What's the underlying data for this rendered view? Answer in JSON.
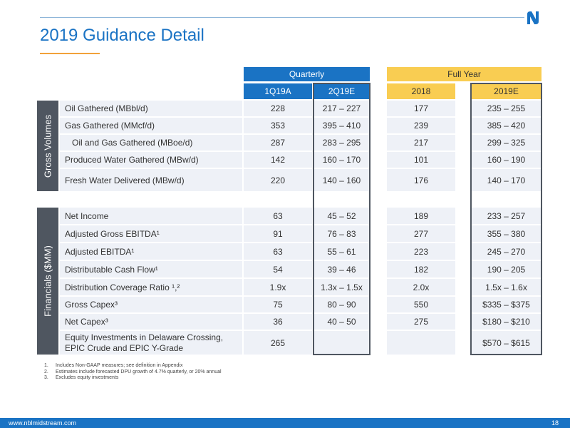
{
  "title": "2019 Guidance Detail",
  "groups": {
    "quarterly": "Quarterly",
    "full_year": "Full Year"
  },
  "columns": [
    "1Q19A",
    "2Q19E",
    "2018",
    "2019E"
  ],
  "sections": [
    {
      "label": "Gross Volumes",
      "rows": [
        {
          "label": "Oil Gathered (MBbl/d)",
          "values": [
            "228",
            "217 – 227",
            "177",
            "235 – 255"
          ]
        },
        {
          "label": "Gas Gathered (MMcf/d)",
          "values": [
            "353",
            "395 – 410",
            "239",
            "385 – 420"
          ]
        },
        {
          "label": "Oil and Gas Gathered (MBoe/d)",
          "values": [
            "287",
            "283 – 295",
            "217",
            "299 – 325"
          ]
        },
        {
          "label": "Produced Water Gathered (MBw/d)",
          "values": [
            "142",
            "160 – 170",
            "101",
            "160 – 190"
          ]
        },
        {
          "label": "Fresh Water Delivered (MBw/d)",
          "values": [
            "220",
            "140 – 160",
            "176",
            "140 – 170"
          ]
        }
      ]
    },
    {
      "label": "Financials ($MM)",
      "rows": [
        {
          "label": "Net Income",
          "values": [
            "63",
            "45 – 52",
            "189",
            "233 – 257"
          ]
        },
        {
          "label": "Adjusted Gross EBITDA¹",
          "values": [
            "91",
            "76 – 83",
            "277",
            "355 – 380"
          ]
        },
        {
          "label": "Adjusted EBITDA¹",
          "values": [
            "63",
            "55 – 61",
            "223",
            "245 – 270"
          ]
        },
        {
          "label": "Distributable Cash Flow¹",
          "values": [
            "54",
            "39 – 46",
            "182",
            "190 – 205"
          ]
        },
        {
          "label": "Distribution Coverage Ratio ¹,²",
          "values": [
            "1.9x",
            "1.3x – 1.5x",
            "2.0x",
            "1.5x – 1.6x"
          ]
        },
        {
          "label": "Gross Capex³",
          "values": [
            "75",
            "80 – 90",
            "550",
            "$335 – $375"
          ]
        },
        {
          "label": "Net Capex³",
          "values": [
            "36",
            "40 – 50",
            "275",
            "$180 – $210"
          ]
        },
        {
          "label": "Equity Investments in Delaware Crossing, EPIC Crude and EPIC Y-Grade",
          "values": [
            "265",
            "",
            "",
            "$570 – $615"
          ]
        }
      ]
    }
  ],
  "footnotes": [
    {
      "num": "1.",
      "text": "Includes Non-GAAP measures; see definition in Appendix"
    },
    {
      "num": "2.",
      "text": "Estimates include forecasted DPU growth of 4.7% quarterly, or 20% annual"
    },
    {
      "num": "3.",
      "text": "Excludes equity investments"
    }
  ],
  "footer": {
    "url": "www.nblmidstream.com",
    "page": "18"
  },
  "colors": {
    "blue": "#1a73c4",
    "yellow": "#f9cd52",
    "dark": "#4f5660",
    "row_bg": "#eef1f7",
    "orange": "#f2a23a"
  }
}
